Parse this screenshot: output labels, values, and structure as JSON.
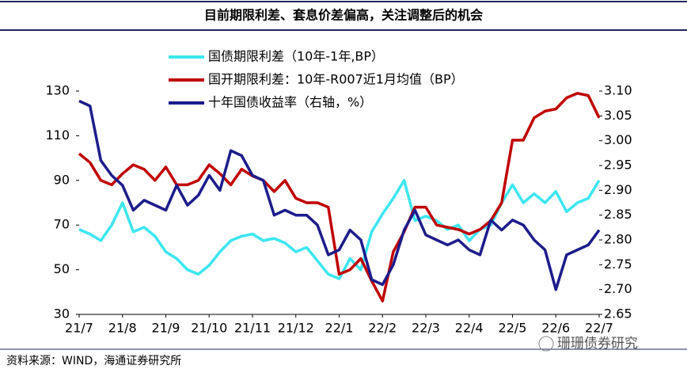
{
  "chart_data": {
    "type": "line",
    "title": "目前期限利差、套息价差偏高，关注调整后的机会",
    "source": "资料来源：WIND，海通证券研究所",
    "watermark": "珊珊债券研究",
    "categories": [
      "21/7",
      null,
      null,
      null,
      "21/8",
      null,
      null,
      null,
      "21/9",
      null,
      null,
      null,
      "21/10",
      null,
      null,
      null,
      "21/11",
      null,
      null,
      null,
      "21/12",
      null,
      null,
      null,
      "22/1",
      null,
      null,
      null,
      "22/2",
      null,
      null,
      null,
      "22/3",
      null,
      null,
      null,
      "22/4",
      null,
      null,
      null,
      "22/5",
      null,
      null,
      null,
      "22/6",
      null,
      null,
      null,
      "22/7"
    ],
    "ylim": [
      30,
      130
    ],
    "yticks": [
      30,
      50,
      70,
      90,
      110,
      130
    ],
    "y2lim": [
      2.65,
      3.1
    ],
    "y2ticks": [
      {
        "value": 2.65,
        "label": "2.65"
      },
      {
        "value": 2.7,
        "label": "2.70"
      },
      {
        "value": 2.75,
        "label": "2.75"
      },
      {
        "value": 2.8,
        "label": "2.80"
      },
      {
        "value": 2.85,
        "label": "2.85"
      },
      {
        "value": 2.9,
        "label": "2.90"
      },
      {
        "value": 2.95,
        "label": "2.95"
      },
      {
        "value": 3.0,
        "label": "3.00"
      },
      {
        "value": 3.05,
        "label": "3.05"
      },
      {
        "value": 3.1,
        "label": "3.10"
      }
    ],
    "legend": "top-left",
    "series": [
      {
        "name": "国债期限利差（10年-1年,BP）",
        "color": "#3ce6f0",
        "values": [
          68,
          66,
          63,
          70,
          80,
          67,
          69,
          65,
          58,
          55,
          50,
          48,
          52,
          58,
          63,
          65,
          66,
          63,
          64,
          62,
          58,
          60,
          54,
          48,
          46,
          55,
          50,
          67,
          75,
          82,
          90,
          72,
          74,
          72,
          68,
          70,
          63,
          68,
          70,
          80,
          88,
          80,
          84,
          80,
          85,
          76,
          80,
          82,
          90
        ]
      },
      {
        "name": "国开期限利差：10年-R007近1月均值（BP）",
        "color": "#c00000",
        "values": [
          102,
          98,
          90,
          88,
          93,
          97,
          95,
          90,
          96,
          88,
          88,
          90,
          97,
          93,
          88,
          95,
          92,
          90,
          85,
          90,
          82,
          80,
          80,
          78,
          48,
          50,
          55,
          45,
          36,
          58,
          67,
          78,
          78,
          70,
          69,
          68,
          66,
          68,
          72,
          80,
          108,
          108,
          118,
          121,
          122,
          127,
          129,
          128,
          118
        ]
      },
      {
        "name": "十年国债收益率（右轴，%）",
        "color": "#1c1c8c",
        "axis": "y2",
        "values": [
          3.08,
          3.07,
          2.96,
          2.93,
          2.91,
          2.86,
          2.88,
          2.87,
          2.86,
          2.91,
          2.87,
          2.89,
          2.93,
          2.9,
          2.98,
          2.97,
          2.93,
          2.92,
          2.85,
          2.86,
          2.85,
          2.85,
          2.83,
          2.77,
          2.78,
          2.82,
          2.8,
          2.72,
          2.71,
          2.75,
          2.82,
          2.86,
          2.81,
          2.8,
          2.79,
          2.8,
          2.78,
          2.77,
          2.84,
          2.82,
          2.84,
          2.83,
          2.8,
          2.78,
          2.7,
          2.77,
          2.78,
          2.79,
          2.82
        ]
      }
    ]
  }
}
